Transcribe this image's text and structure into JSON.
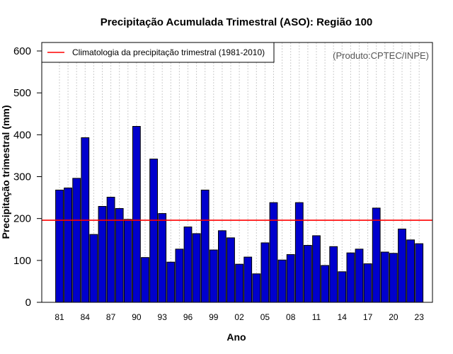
{
  "chart_data": {
    "type": "bar",
    "title": "Precipitação Acumulada Trimestral (ASO): Região 100",
    "xlabel": "Ano",
    "ylabel": "Precipitação trimestral (mm)",
    "ylim": [
      0,
      620
    ],
    "yticks": [
      0,
      100,
      200,
      300,
      400,
      500,
      600
    ],
    "categories": [
      "81",
      "82",
      "83",
      "84",
      "85",
      "86",
      "87",
      "88",
      "89",
      "90",
      "91",
      "92",
      "93",
      "94",
      "95",
      "96",
      "97",
      "98",
      "99",
      "00",
      "01",
      "02",
      "03",
      "04",
      "05",
      "06",
      "07",
      "08",
      "09",
      "10",
      "11",
      "12",
      "13",
      "14",
      "15",
      "16",
      "17",
      "18",
      "19",
      "20",
      "21",
      "22",
      "23"
    ],
    "xtick_labels": [
      "81",
      "84",
      "87",
      "90",
      "93",
      "96",
      "99",
      "02",
      "05",
      "08",
      "11",
      "14",
      "17",
      "20",
      "23"
    ],
    "values": [
      268,
      273,
      296,
      393,
      162,
      229,
      251,
      224,
      198,
      420,
      107,
      342,
      212,
      96,
      127,
      180,
      164,
      268,
      125,
      171,
      154,
      91,
      108,
      68,
      142,
      238,
      101,
      114,
      238,
      136,
      159,
      88,
      133,
      73,
      118,
      127,
      92,
      225,
      120,
      117,
      175,
      149,
      140
    ],
    "bar_color": "#0000cd",
    "reference_line": {
      "value": 196,
      "color": "#ff0000",
      "label": "Climatologia da precipitação trimestral (1981-2010)"
    },
    "legend": "top-left",
    "grid": "vertical dotted"
  },
  "credit": "(Produto:CPTEC/INPE)"
}
